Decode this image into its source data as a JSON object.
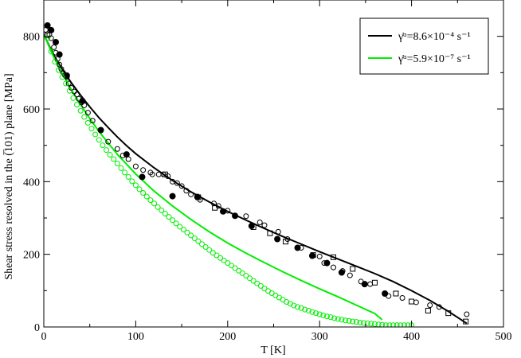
{
  "chart_data": {
    "type": "scatter",
    "title": "",
    "xlabel": "T [K]",
    "ylabel": "Shear stress resolved in the (̅101) plane [MPa]",
    "xlim": [
      0,
      500
    ],
    "ylim": [
      0,
      900
    ],
    "xticks": [
      "0",
      "100",
      "200",
      "300",
      "400",
      "500"
    ],
    "yticks": [
      "0",
      "200",
      "400",
      "600",
      "800"
    ],
    "legend": {
      "position": "top-right",
      "entries": [
        {
          "label": "γ̇ᵅ=8.6×10⁻⁴ s⁻¹",
          "color": "#000000"
        },
        {
          "label": "γ̇ᵅ=5.9×10⁻⁷ s⁻¹",
          "color": "#00ee00"
        }
      ]
    },
    "series": [
      {
        "marker": "line",
        "color": "#000000",
        "x": [
          0,
          10,
          20,
          30,
          40,
          50,
          60,
          70,
          80,
          90,
          100,
          120,
          140,
          160,
          180,
          200,
          220,
          240,
          260,
          280,
          300,
          320,
          340,
          360,
          380,
          400,
          420,
          440,
          460
        ],
        "y": [
          805,
          752,
          710,
          672,
          638,
          606,
          576,
          549,
          523,
          499,
          477,
          438,
          403,
          372,
          344,
          318,
          294,
          271,
          249,
          228,
          207,
          187,
          167,
          147,
          125,
          100,
          73,
          43,
          10
        ]
      },
      {
        "marker": "line",
        "color": "#00ee00",
        "x": [
          0,
          10,
          20,
          30,
          40,
          50,
          60,
          80,
          100,
          120,
          140,
          160,
          180,
          200,
          220,
          240,
          260,
          280,
          300,
          320,
          340,
          360,
          368
        ],
        "y": [
          805,
          747,
          698,
          653,
          612,
          574,
          538,
          475,
          421,
          374,
          333,
          296,
          262,
          231,
          203,
          177,
          152,
          128,
          105,
          83,
          60,
          37,
          20
        ]
      },
      {
        "marker": "filled-circle",
        "color": "#000000",
        "x": [
          4,
          8,
          13,
          17,
          25,
          42,
          62,
          90,
          107,
          140,
          167,
          195,
          208,
          226,
          254,
          276,
          292,
          308,
          324,
          349,
          371
        ],
        "y": [
          830,
          817,
          784,
          750,
          692,
          622,
          542,
          475,
          413,
          360,
          358,
          318,
          306,
          278,
          242,
          218,
          196,
          176,
          150,
          118,
          92
        ]
      },
      {
        "marker": "open-circle",
        "color": "#000000",
        "x": [
          2,
          6,
          8,
          11,
          13,
          15,
          17,
          19,
          21,
          23,
          25,
          27,
          30,
          33,
          36,
          38,
          41,
          44,
          48,
          53,
          70,
          80,
          86,
          92,
          100,
          108,
          116,
          118,
          125,
          130,
          135,
          140,
          145,
          150,
          155,
          160,
          170,
          185,
          190,
          200,
          220,
          235,
          240,
          255,
          265,
          280,
          300,
          305,
          315,
          325,
          333,
          345,
          355,
          375,
          390,
          405,
          420,
          430,
          460
        ],
        "y": [
          818,
          805,
          795,
          770,
          755,
          738,
          722,
          710,
          700,
          693,
          688,
          670,
          658,
          648,
          640,
          628,
          618,
          610,
          590,
          568,
          510,
          490,
          472,
          462,
          442,
          432,
          425,
          420,
          420,
          420,
          415,
          400,
          396,
          388,
          375,
          365,
          350,
          340,
          333,
          320,
          305,
          288,
          280,
          262,
          242,
          218,
          194,
          176,
          164,
          154,
          142,
          125,
          118,
          85,
          80,
          68,
          60,
          55,
          35
        ]
      },
      {
        "marker": "open-square",
        "color": "#000000",
        "x": [
          4,
          132,
          168,
          186,
          228,
          246,
          263,
          293,
          315,
          336,
          360,
          383,
          400,
          418,
          440,
          459
        ],
        "y": [
          803,
          420,
          357,
          328,
          275,
          258,
          235,
          198,
          192,
          160,
          122,
          92,
          70,
          45,
          38,
          15
        ]
      },
      {
        "marker": "open-circle",
        "color": "#00ee00",
        "x": [
          4,
          8,
          12,
          16,
          20,
          24,
          28,
          32,
          36,
          40,
          44,
          48,
          52,
          56,
          60,
          64,
          68,
          72,
          76,
          80,
          84,
          88,
          92,
          96,
          100,
          104,
          108,
          112,
          116,
          120,
          124,
          128,
          132,
          136,
          140,
          144,
          148,
          152,
          156,
          160,
          164,
          168,
          172,
          176,
          180,
          184,
          188,
          192,
          196,
          200,
          204,
          208,
          212,
          216,
          220,
          224,
          228,
          232,
          236,
          240,
          244,
          248,
          252,
          256,
          260,
          264,
          268,
          272,
          276,
          280,
          284,
          288,
          292,
          296,
          300,
          304,
          308,
          312,
          316,
          320,
          324,
          328,
          332,
          336,
          340,
          344,
          348,
          352,
          356,
          360,
          364,
          368,
          372,
          376,
          380,
          384,
          388,
          392,
          396,
          400
        ],
        "y": [
          795,
          758,
          730,
          707,
          688,
          670,
          650,
          630,
          612,
          595,
          578,
          562,
          546,
          530,
          515,
          500,
          487,
          474,
          462,
          450,
          437,
          425,
          413,
          401,
          390,
          379,
          369,
          359,
          349,
          340,
          330,
          321,
          312,
          303,
          294,
          285,
          276,
          268,
          260,
          252,
          244,
          236,
          228,
          220,
          212,
          204,
          197,
          190,
          183,
          176,
          169,
          162,
          155,
          148,
          141,
          134,
          127,
          120,
          113,
          106,
          99,
          93,
          87,
          81,
          75,
          69,
          64,
          59,
          55,
          52,
          48,
          45,
          41,
          38,
          35,
          32,
          29,
          27,
          24,
          22,
          20,
          18,
          17,
          15,
          14,
          12,
          11,
          10,
          9,
          8,
          7,
          6,
          5,
          5,
          5,
          5,
          5,
          5,
          5,
          5
        ]
      }
    ]
  }
}
